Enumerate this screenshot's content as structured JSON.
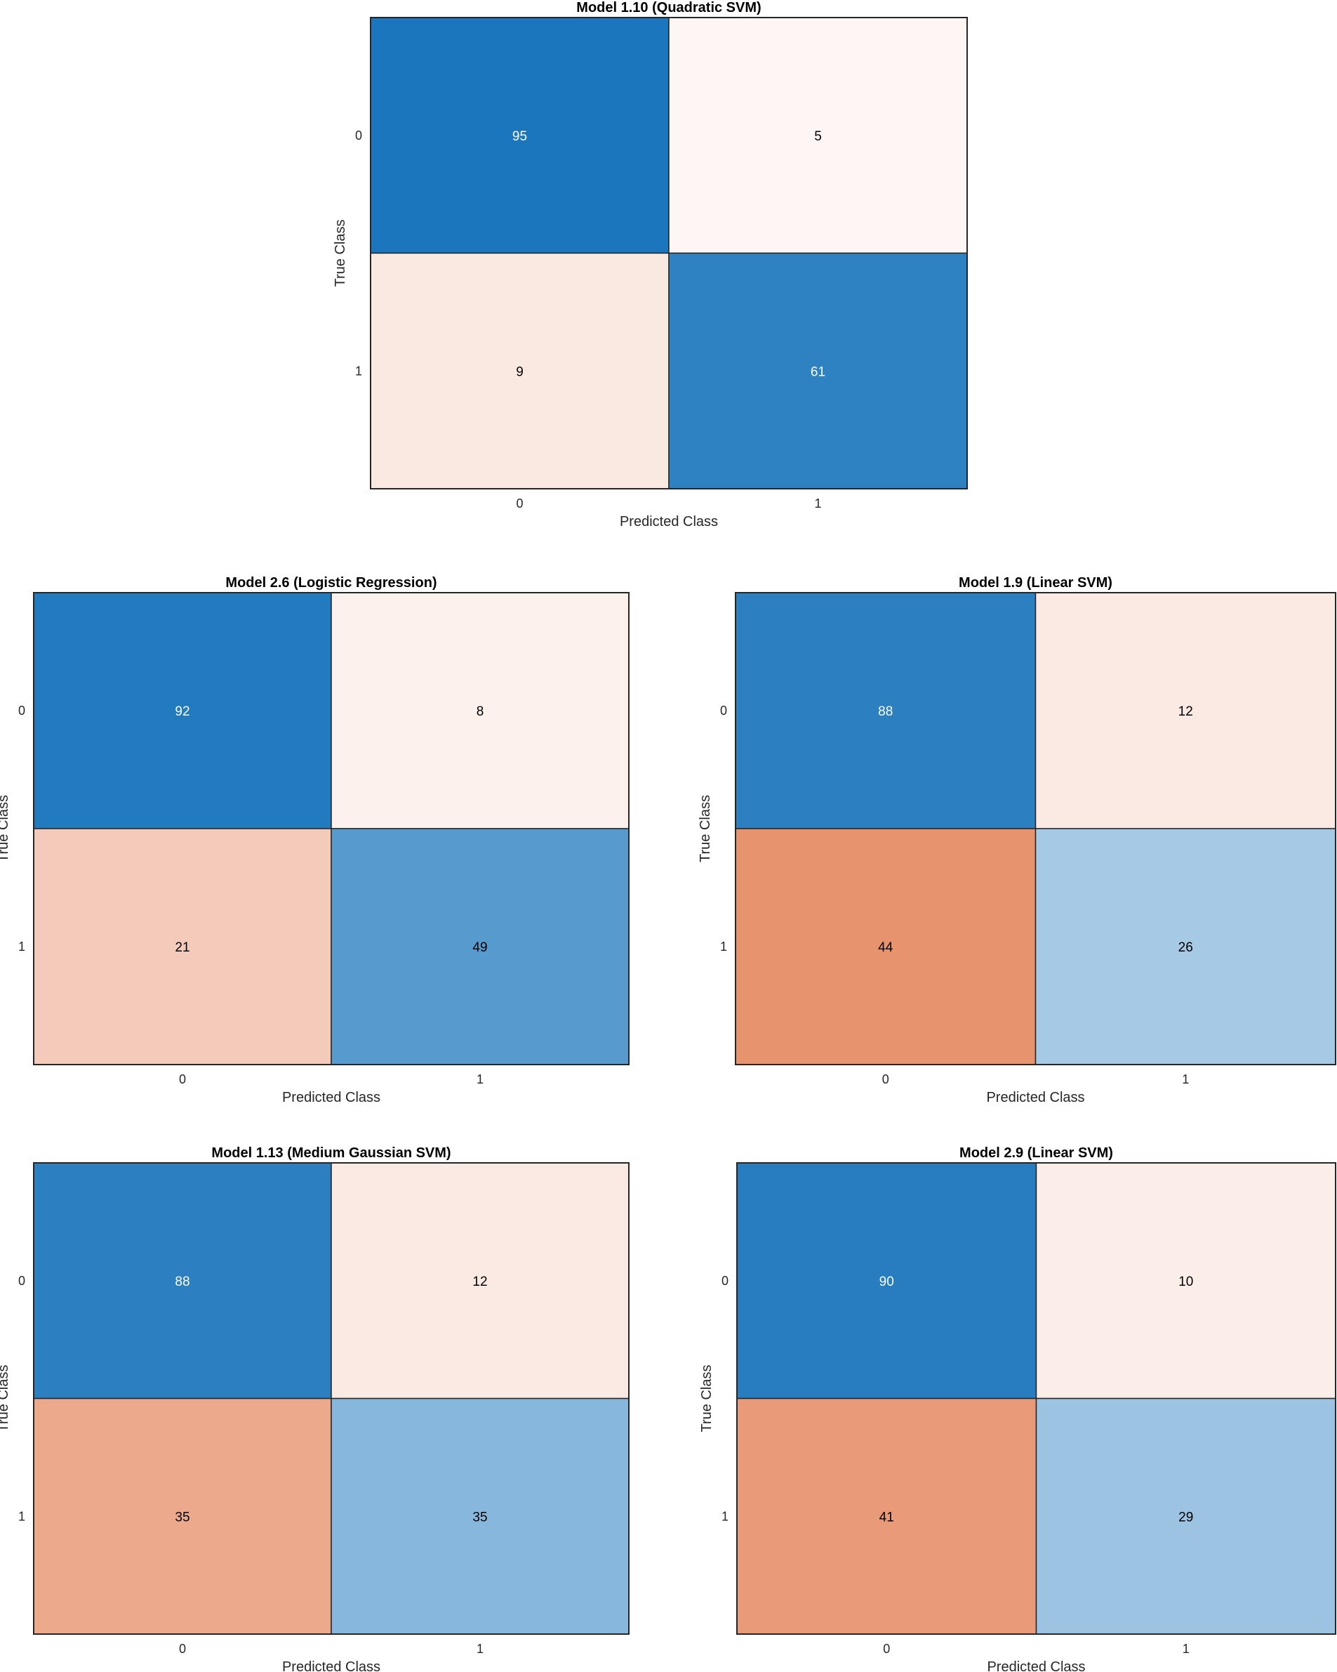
{
  "chart_data": [
    {
      "type": "heatmap",
      "title": "Model 1.10 (Quadratic SVM)",
      "xlabel": "Predicted Class",
      "ylabel": "True Class",
      "row_labels": [
        "0",
        "1"
      ],
      "col_labels": [
        "0",
        "1"
      ],
      "values": [
        [
          95,
          5
        ],
        [
          9,
          61
        ]
      ],
      "grid": false,
      "colorbar": false
    },
    {
      "type": "heatmap",
      "title": "Model 2.6 (Logistic Regression)",
      "xlabel": "Predicted Class",
      "ylabel": "True Class",
      "row_labels": [
        "0",
        "1"
      ],
      "col_labels": [
        "0",
        "1"
      ],
      "values": [
        [
          92,
          8
        ],
        [
          21,
          49
        ]
      ],
      "grid": false,
      "colorbar": false
    },
    {
      "type": "heatmap",
      "title": "Model 1.9 (Linear SVM)",
      "xlabel": "Predicted Class",
      "ylabel": "True Class",
      "row_labels": [
        "0",
        "1"
      ],
      "col_labels": [
        "0",
        "1"
      ],
      "values": [
        [
          88,
          12
        ],
        [
          44,
          26
        ]
      ],
      "grid": false,
      "colorbar": false
    },
    {
      "type": "heatmap",
      "title": "Model 1.13 (Medium Gaussian SVM)",
      "xlabel": "Predicted Class",
      "ylabel": "True Class",
      "row_labels": [
        "0",
        "1"
      ],
      "col_labels": [
        "0",
        "1"
      ],
      "values": [
        [
          88,
          12
        ],
        [
          35,
          35
        ]
      ],
      "grid": false,
      "colorbar": false
    },
    {
      "type": "heatmap",
      "title": "Model 2.9 (Linear SVM)",
      "xlabel": "Predicted Class",
      "ylabel": "True Class",
      "row_labels": [
        "0",
        "1"
      ],
      "col_labels": [
        "0",
        "1"
      ],
      "values": [
        [
          90,
          10
        ],
        [
          41,
          29
        ]
      ],
      "grid": false,
      "colorbar": false
    }
  ],
  "colors": {
    "diagonal_max": "#0F6FB9",
    "diagonal_min": "#FFFFFF",
    "offdiag_max": "#D95319",
    "offdiag_min": "#FFFFFF",
    "dark_text": "#000000",
    "light_text": "#FFFFFF",
    "border": "#262626"
  }
}
